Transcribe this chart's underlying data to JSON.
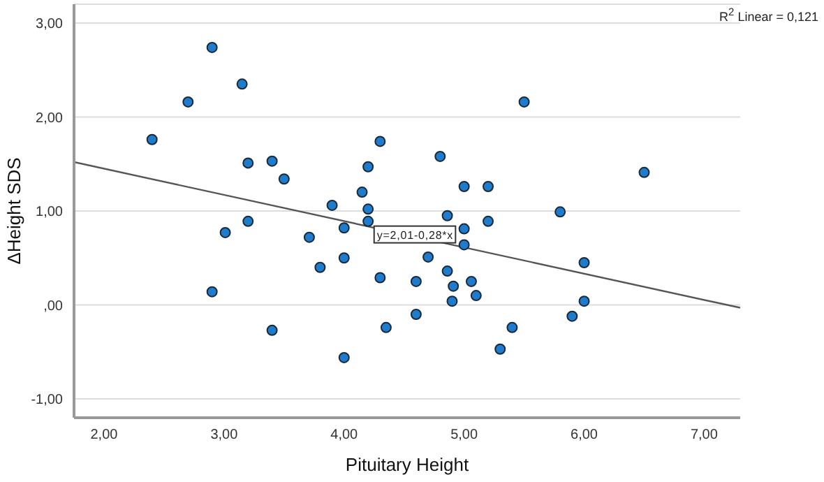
{
  "chart_data": {
    "type": "scatter",
    "xlabel": "Pituitary Height",
    "ylabel": "ΔHeight SDS",
    "xlim": [
      1.75,
      7.3
    ],
    "ylim": [
      -1.2,
      3.2
    ],
    "xticks": [
      {
        "value": 2,
        "label": "2,00"
      },
      {
        "value": 3,
        "label": "3,00"
      },
      {
        "value": 4,
        "label": "4,00"
      },
      {
        "value": 5,
        "label": "5,00"
      },
      {
        "value": 6,
        "label": "6,00"
      },
      {
        "value": 7,
        "label": "7,00"
      }
    ],
    "yticks": [
      {
        "value": -1,
        "label": "-1,00"
      },
      {
        "value": 0,
        "label": ",00"
      },
      {
        "value": 1,
        "label": "1,00"
      },
      {
        "value": 2,
        "label": "2,00"
      },
      {
        "value": 3,
        "label": "3,00"
      }
    ],
    "grid": "y",
    "marker": "circle",
    "series": [
      {
        "color": "#1f7ccc",
        "x": [
          2.4,
          2.7,
          2.9,
          3.15,
          3.2,
          3.2,
          3.01,
          3.4,
          3.5,
          2.9,
          3.4,
          3.71,
          3.8,
          3.9,
          4.0,
          4.0,
          4.0,
          4.15,
          4.2,
          4.2,
          4.2,
          4.3,
          4.3,
          4.35,
          4.6,
          4.6,
          4.7,
          4.8,
          4.86,
          4.86,
          4.91,
          4.9,
          5.0,
          5.0,
          5.0,
          5.2,
          5.2,
          5.06,
          5.1,
          5.5,
          5.3,
          5.4,
          5.8,
          5.9,
          6.0,
          6.0,
          6.5
        ],
        "values": [
          1.76,
          2.16,
          2.74,
          2.35,
          1.51,
          0.89,
          0.77,
          1.53,
          1.34,
          0.14,
          -0.27,
          0.72,
          0.4,
          1.06,
          0.5,
          0.82,
          -0.56,
          1.2,
          1.47,
          1.02,
          0.89,
          1.74,
          0.29,
          -0.24,
          0.25,
          -0.1,
          0.51,
          1.58,
          0.95,
          0.36,
          0.2,
          0.04,
          1.26,
          0.81,
          0.64,
          1.26,
          0.89,
          0.25,
          0.1,
          2.16,
          -0.47,
          -0.24,
          0.99,
          -0.12,
          0.45,
          0.04,
          1.41
        ]
      },
      {
        "type": "line",
        "color": "#555555",
        "marker": "none",
        "x": [
          1.75,
          7.3
        ],
        "values": [
          1.52,
          -0.03
        ]
      }
    ],
    "annotations": [
      {
        "text": "y=2,01-0,28*x",
        "x": 4.25,
        "y": 0.75
      },
      "R$^{2}$ Linear = 0,121"
    ]
  }
}
